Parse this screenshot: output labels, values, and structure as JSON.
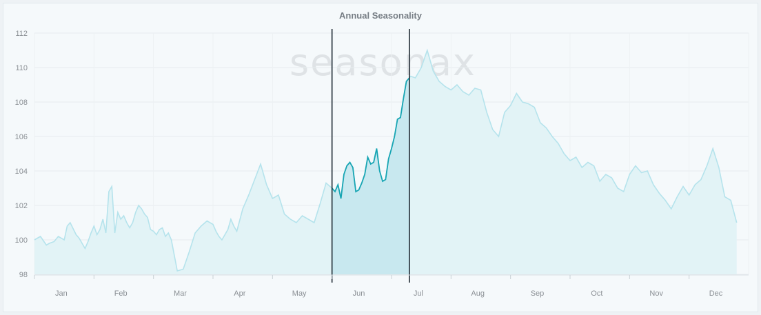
{
  "chart_data": {
    "type": "area",
    "title": "Annual Seasonality",
    "watermark": "seasonax",
    "xlabel": "",
    "ylabel": "",
    "ylim": [
      98,
      112
    ],
    "yticks": [
      98,
      100,
      102,
      104,
      106,
      108,
      110,
      112
    ],
    "months": [
      "Jan",
      "Feb",
      "Mar",
      "Apr",
      "May",
      "Jun",
      "Jul",
      "Aug",
      "Sep",
      "Oct",
      "Nov",
      "Dec"
    ],
    "grid": true,
    "highlight_range": {
      "start": "Jun 1",
      "end": "Jul 10"
    },
    "colors": {
      "line_main": "#b5e3ec",
      "fill_main": "#e2f3f6",
      "line_highlight": "#17a5b3",
      "fill_highlight": "#bfe4ec",
      "marker": "#1e2a33"
    },
    "series": [
      {
        "x": [
          0.0,
          0.1,
          0.2,
          0.25,
          0.33,
          0.4,
          0.5,
          0.55,
          0.6,
          0.7,
          0.75,
          0.8,
          0.85,
          0.9,
          0.95,
          1.0,
          1.05,
          1.1,
          1.15,
          1.2,
          1.25,
          1.3,
          1.35,
          1.4,
          1.45,
          1.5,
          1.55,
          1.6,
          1.65,
          1.7,
          1.75,
          1.8,
          1.85,
          1.9,
          1.95,
          2.0,
          2.05,
          2.1,
          2.15,
          2.2,
          2.25,
          2.3,
          2.4,
          2.5,
          2.6,
          2.7,
          2.8,
          2.9,
          3.0,
          3.05,
          3.1,
          3.15,
          3.2,
          3.25,
          3.3,
          3.35,
          3.4,
          3.5,
          3.6,
          3.7,
          3.8,
          3.9,
          4.0,
          4.1,
          4.2,
          4.3,
          4.4,
          4.5,
          4.6,
          4.7,
          4.8,
          4.9,
          5.0,
          5.05,
          5.1,
          5.15,
          5.2,
          5.25,
          5.3,
          5.35,
          5.4,
          5.45,
          5.5,
          5.55,
          5.6,
          5.65,
          5.7,
          5.75,
          5.8,
          5.85,
          5.9,
          5.95,
          6.0,
          6.05,
          6.1,
          6.15,
          6.2,
          6.25,
          6.3,
          6.32,
          6.4,
          6.5,
          6.6,
          6.7,
          6.8,
          6.9,
          7.0,
          7.1,
          7.2,
          7.3,
          7.4,
          7.5,
          7.6,
          7.7,
          7.8,
          7.9,
          8.0,
          8.1,
          8.2,
          8.3,
          8.4,
          8.5,
          8.6,
          8.7,
          8.8,
          8.9,
          9.0,
          9.1,
          9.2,
          9.3,
          9.4,
          9.5,
          9.6,
          9.7,
          9.8,
          9.9,
          10.0,
          10.1,
          10.2,
          10.3,
          10.4,
          10.5,
          10.6,
          10.7,
          10.8,
          10.9,
          11.0,
          11.1,
          11.2,
          11.3,
          11.4,
          11.5,
          11.6,
          11.7,
          11.8
        ],
        "y": [
          100.0,
          100.2,
          99.7,
          99.8,
          99.9,
          100.2,
          100.0,
          100.8,
          101.0,
          100.3,
          100.1,
          99.8,
          99.5,
          99.9,
          100.4,
          100.8,
          100.3,
          100.6,
          101.2,
          100.4,
          102.8,
          103.1,
          100.4,
          101.6,
          101.2,
          101.4,
          101.0,
          100.7,
          101.0,
          101.6,
          102.0,
          101.8,
          101.5,
          101.3,
          100.6,
          100.5,
          100.3,
          100.6,
          100.7,
          100.2,
          100.4,
          100.0,
          98.2,
          98.3,
          99.3,
          100.4,
          100.8,
          101.1,
          100.9,
          100.5,
          100.2,
          100.0,
          100.3,
          100.6,
          101.2,
          100.8,
          100.5,
          101.8,
          102.6,
          103.5,
          104.4,
          103.2,
          102.4,
          102.6,
          101.5,
          101.2,
          101.0,
          101.4,
          101.2,
          101.0,
          102.1,
          103.3,
          103.0,
          102.8,
          103.2,
          102.4,
          103.8,
          104.3,
          104.5,
          104.2,
          102.8,
          102.9,
          103.3,
          103.8,
          104.8,
          104.4,
          104.5,
          105.3,
          104.0,
          103.4,
          103.5,
          104.7,
          105.3,
          106.0,
          107.0,
          107.1,
          108.2,
          109.2,
          109.4,
          109.5,
          109.4,
          110.0,
          111.0,
          109.8,
          109.2,
          108.9,
          108.7,
          109.0,
          108.6,
          108.4,
          108.8,
          108.7,
          107.4,
          106.4,
          106.0,
          107.4,
          107.8,
          108.5,
          108.0,
          107.9,
          107.7,
          106.8,
          106.5,
          106.0,
          105.6,
          105.0,
          104.6,
          104.8,
          104.2,
          104.5,
          104.3,
          103.4,
          103.8,
          103.6,
          103.0,
          102.8,
          103.8,
          104.3,
          103.9,
          104.0,
          103.2,
          102.7,
          102.3,
          101.8,
          102.5,
          103.1,
          102.6,
          103.2,
          103.5,
          104.3,
          105.3,
          104.2,
          102.5,
          102.3,
          101.0
        ]
      }
    ]
  }
}
